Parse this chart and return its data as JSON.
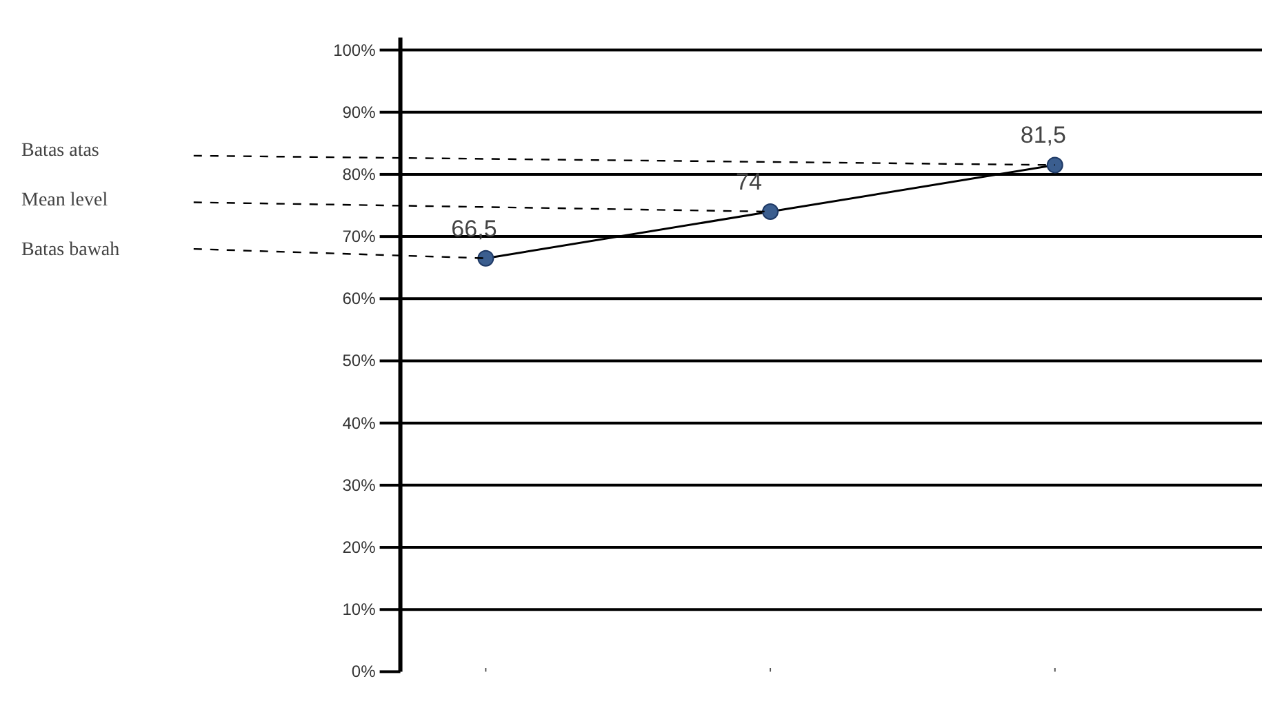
{
  "chart_data": {
    "type": "line",
    "categories": [
      null,
      null,
      null
    ],
    "series": [
      {
        "color": "#000000",
        "values": [
          66.5,
          74,
          81.5
        ],
        "value_labels": [
          "66,5",
          "74",
          "81,5"
        ]
      }
    ],
    "marker": "circle",
    "line_style": "solid",
    "ylim": [
      0,
      100
    ],
    "yticks": [
      {
        "value": 0,
        "label": "0%"
      },
      {
        "value": 10,
        "label": "10%"
      },
      {
        "value": 20,
        "label": "20%"
      },
      {
        "value": 30,
        "label": "30%"
      },
      {
        "value": 40,
        "label": "40%"
      },
      {
        "value": 50,
        "label": "50%"
      },
      {
        "value": 60,
        "label": "60%"
      },
      {
        "value": 70,
        "label": "70%"
      },
      {
        "value": 80,
        "label": "80%"
      },
      {
        "value": 90,
        "label": "90%"
      },
      {
        "value": 100,
        "label": "100%"
      }
    ],
    "grid": "y",
    "tick_labels": "y",
    "annotations": [
      "Batas atas",
      "Mean level",
      "Batas bawah"
    ]
  }
}
